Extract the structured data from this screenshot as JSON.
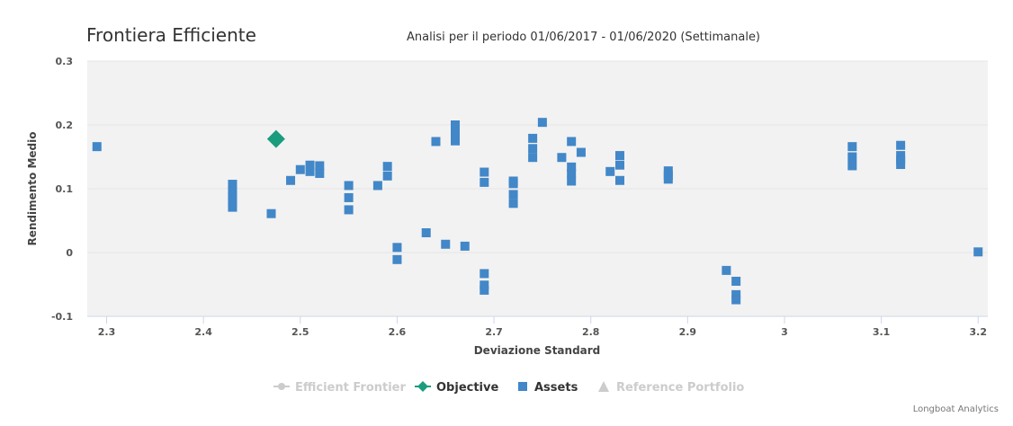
{
  "chart_data": {
    "type": "scatter",
    "title": "Frontiera Efficiente",
    "subtitle": "Analisi per il periodo 01/06/2017 - 01/06/2020 (Settimanale)",
    "xlabel": "Deviazione Standard",
    "ylabel": "Rendimento Medio",
    "xlim": [
      2.28,
      3.21
    ],
    "ylim": [
      -0.1,
      0.3
    ],
    "xticks": [
      "2.3",
      "2.4",
      "2.5",
      "2.6",
      "2.7",
      "2.8",
      "2.9",
      "3",
      "3.1",
      "3.2"
    ],
    "xtick_values": [
      2.3,
      2.4,
      2.5,
      2.6,
      2.7,
      2.8,
      2.9,
      3.0,
      3.1,
      3.2
    ],
    "yticks": [
      "0.3",
      "0.2",
      "0.1",
      "0",
      "-0.1"
    ],
    "ytick_values": [
      0.3,
      0.2,
      0.1,
      0,
      -0.1
    ],
    "grid": "horizontal",
    "legend_position": "bottom-center",
    "series": [
      {
        "name": "Efficient Frontier",
        "symbol": "circle",
        "color": "#cccccc",
        "hidden": true,
        "points": []
      },
      {
        "name": "Objective",
        "symbol": "diamond",
        "color": "#1a9c7e",
        "points": [
          [
            2.475,
            0.178
          ]
        ]
      },
      {
        "name": "Assets",
        "symbol": "square",
        "color": "#4287c8",
        "points": [
          [
            2.29,
            0.166
          ],
          [
            2.43,
            0.107
          ],
          [
            2.43,
            0.096
          ],
          [
            2.43,
            0.088
          ],
          [
            2.43,
            0.079
          ],
          [
            2.43,
            0.071
          ],
          [
            2.47,
            0.061
          ],
          [
            2.49,
            0.113
          ],
          [
            2.5,
            0.13
          ],
          [
            2.51,
            0.137
          ],
          [
            2.51,
            0.127
          ],
          [
            2.52,
            0.136
          ],
          [
            2.52,
            0.124
          ],
          [
            2.55,
            0.105
          ],
          [
            2.55,
            0.086
          ],
          [
            2.55,
            0.067
          ],
          [
            2.58,
            0.105
          ],
          [
            2.59,
            0.135
          ],
          [
            2.59,
            0.12
          ],
          [
            2.6,
            0.008
          ],
          [
            2.6,
            -0.011
          ],
          [
            2.63,
            0.031
          ],
          [
            2.64,
            0.174
          ],
          [
            2.65,
            0.013
          ],
          [
            2.66,
            0.2
          ],
          [
            2.66,
            0.191
          ],
          [
            2.66,
            0.183
          ],
          [
            2.66,
            0.175
          ],
          [
            2.67,
            0.01
          ],
          [
            2.69,
            0.126
          ],
          [
            2.69,
            0.11
          ],
          [
            2.69,
            -0.033
          ],
          [
            2.69,
            -0.051
          ],
          [
            2.69,
            -0.059
          ],
          [
            2.72,
            0.112
          ],
          [
            2.72,
            0.108
          ],
          [
            2.72,
            0.091
          ],
          [
            2.72,
            0.077
          ],
          [
            2.74,
            0.179
          ],
          [
            2.74,
            0.163
          ],
          [
            2.74,
            0.149
          ],
          [
            2.75,
            0.204
          ],
          [
            2.77,
            0.149
          ],
          [
            2.78,
            0.174
          ],
          [
            2.78,
            0.134
          ],
          [
            2.78,
            0.124
          ],
          [
            2.78,
            0.112
          ],
          [
            2.79,
            0.157
          ],
          [
            2.82,
            0.127
          ],
          [
            2.83,
            0.152
          ],
          [
            2.83,
            0.137
          ],
          [
            2.83,
            0.113
          ],
          [
            2.88,
            0.128
          ],
          [
            2.88,
            0.121
          ],
          [
            2.88,
            0.115
          ],
          [
            2.94,
            -0.028
          ],
          [
            2.95,
            -0.045
          ],
          [
            2.95,
            -0.066
          ],
          [
            2.95,
            -0.074
          ],
          [
            3.07,
            0.166
          ],
          [
            3.07,
            0.15
          ],
          [
            3.07,
            0.136
          ],
          [
            3.12,
            0.168
          ],
          [
            3.12,
            0.152
          ],
          [
            3.12,
            0.145
          ],
          [
            3.12,
            0.138
          ],
          [
            3.2,
            0.001
          ]
        ]
      },
      {
        "name": "Reference Portfolio",
        "symbol": "triangle",
        "color": "#cccccc",
        "hidden": true,
        "points": []
      }
    ]
  },
  "legend": {
    "items": [
      {
        "label": "Efficient Frontier"
      },
      {
        "label": "Objective"
      },
      {
        "label": "Assets"
      },
      {
        "label": "Reference Portfolio"
      }
    ]
  },
  "credits": "Longboat Analytics",
  "colors": {
    "plot_background": "#f2f2f2",
    "grid": "#e6e6e6",
    "assets": "#4287c8",
    "objective": "#1a9c7e",
    "hidden_series": "#cccccc"
  }
}
